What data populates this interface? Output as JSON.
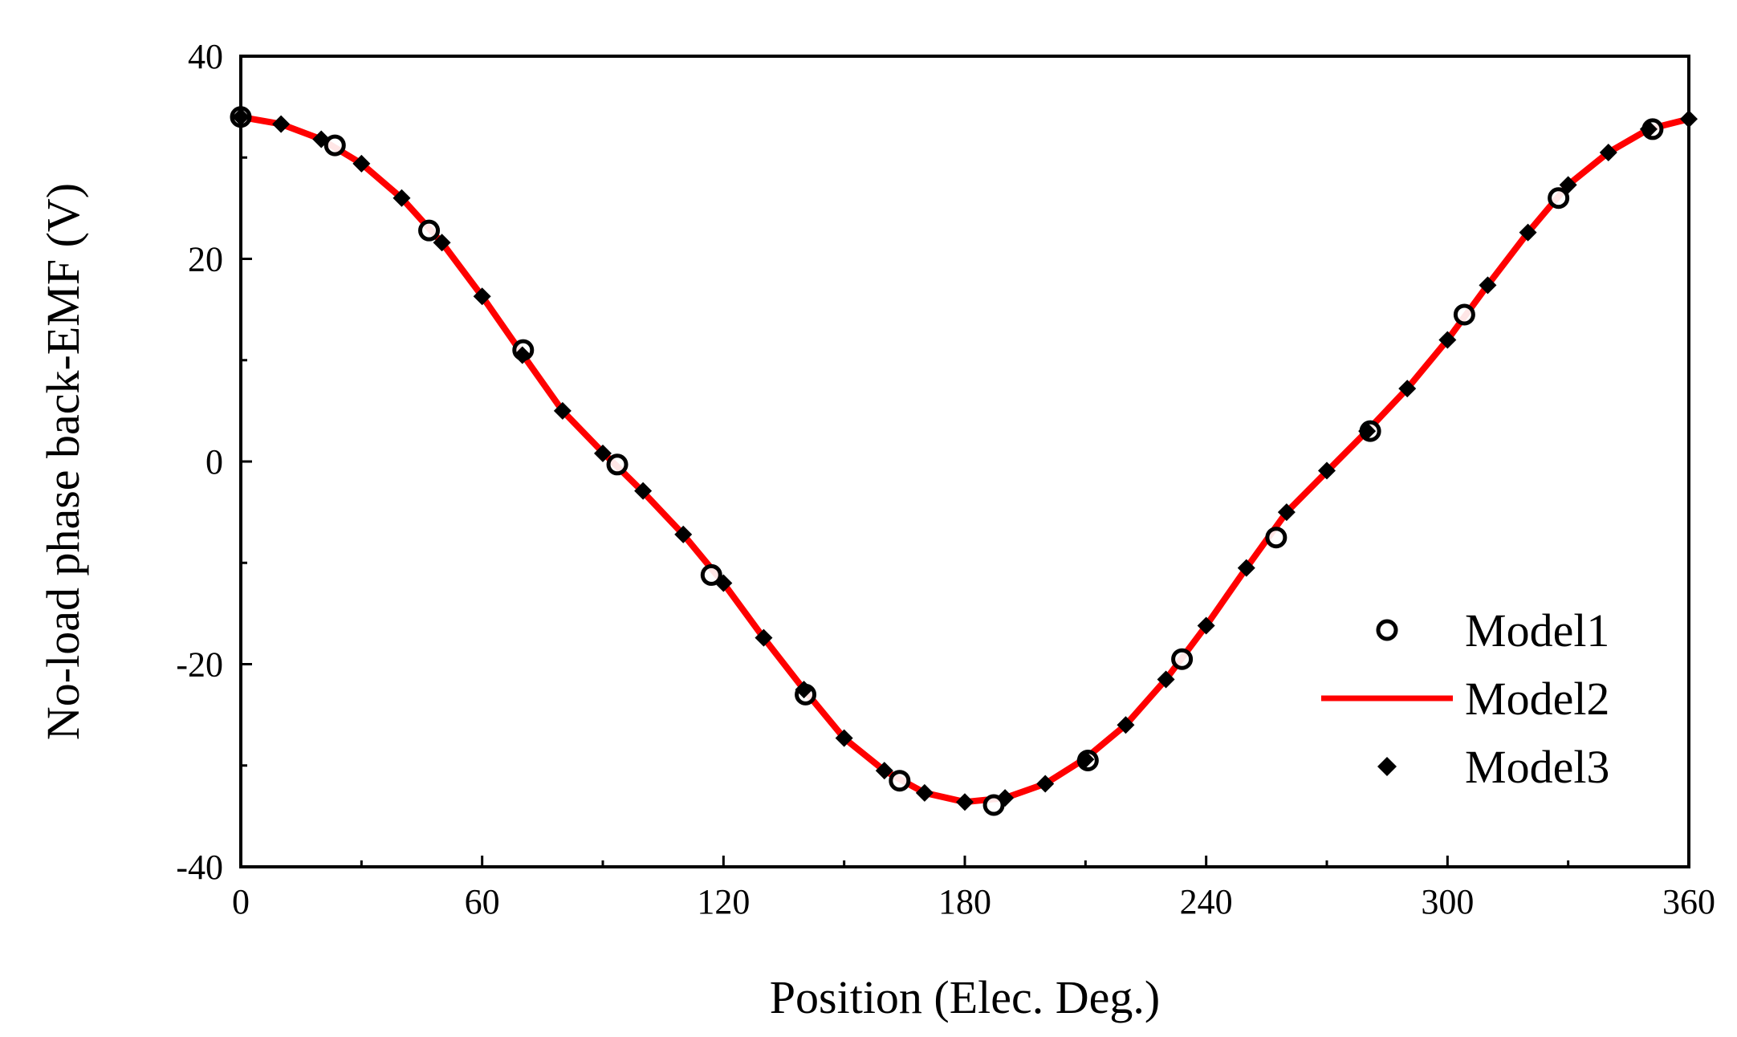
{
  "chart_data": {
    "type": "line",
    "title": "",
    "xlabel": "Position (Elec. Deg.)",
    "ylabel": "No-load phase back-EMF (V)",
    "xlim": [
      0,
      360
    ],
    "ylim": [
      -40,
      40
    ],
    "x_ticks": [
      "0",
      "60",
      "120",
      "180",
      "240",
      "300",
      "360"
    ],
    "y_ticks": [
      "40",
      "20",
      "0",
      "-20",
      "-40"
    ],
    "grid": false,
    "legend_position": "bottom-right",
    "colors": {
      "model1": "#000000",
      "model2": "#ff0000",
      "model3": "#000000"
    },
    "series": [
      {
        "name": "Model1",
        "marker": "open-circle",
        "x": [
          0,
          23.4,
          46.8,
          70.2,
          93.6,
          117,
          140.4,
          163.8,
          187.2,
          210.6,
          234,
          257.4,
          280.8,
          304.2,
          327.6,
          351
        ],
        "y": [
          34.0,
          31.2,
          22.8,
          11.0,
          -0.3,
          -11.2,
          -23.0,
          -31.5,
          -33.9,
          -29.5,
          -19.5,
          -7.5,
          3.0,
          14.5,
          26.0,
          32.8
        ]
      },
      {
        "name": "Model2",
        "marker": "line",
        "x": [
          0,
          10,
          20,
          30,
          40,
          50,
          60,
          70,
          80,
          90,
          100,
          110,
          120,
          130,
          140,
          150,
          160,
          170,
          180,
          190,
          200,
          210,
          220,
          230,
          240,
          250,
          260,
          270,
          280,
          290,
          300,
          310,
          320,
          330,
          340,
          350,
          360
        ],
        "y": [
          34.0,
          33.3,
          31.8,
          29.4,
          26.0,
          21.6,
          16.3,
          10.6,
          5.0,
          0.9,
          -3.0,
          -7.2,
          -12.0,
          -17.4,
          -22.5,
          -27.3,
          -30.5,
          -32.7,
          -33.6,
          -33.2,
          -31.8,
          -29.3,
          -26.0,
          -21.5,
          -16.2,
          -10.5,
          -5.0,
          -1.0,
          3.0,
          7.2,
          12.0,
          17.4,
          22.6,
          27.3,
          30.5,
          32.8,
          33.8
        ]
      },
      {
        "name": "Model3",
        "marker": "filled-diamond",
        "x": [
          0,
          10,
          20,
          30,
          40,
          50,
          60,
          70,
          80,
          90,
          100,
          110,
          120,
          130,
          140,
          150,
          160,
          170,
          180,
          190,
          200,
          210,
          220,
          230,
          240,
          250,
          260,
          270,
          280,
          290,
          300,
          310,
          320,
          330,
          340,
          350,
          360
        ],
        "y": [
          34.0,
          33.3,
          31.8,
          29.4,
          26.0,
          21.6,
          16.3,
          10.5,
          5.0,
          0.8,
          -2.9,
          -7.2,
          -12.0,
          -17.4,
          -22.5,
          -27.3,
          -30.5,
          -32.7,
          -33.6,
          -33.2,
          -31.8,
          -29.4,
          -26.0,
          -21.5,
          -16.2,
          -10.5,
          -5.0,
          -0.9,
          3.0,
          7.2,
          12.0,
          17.4,
          22.6,
          27.3,
          30.5,
          32.8,
          33.8
        ]
      }
    ]
  }
}
